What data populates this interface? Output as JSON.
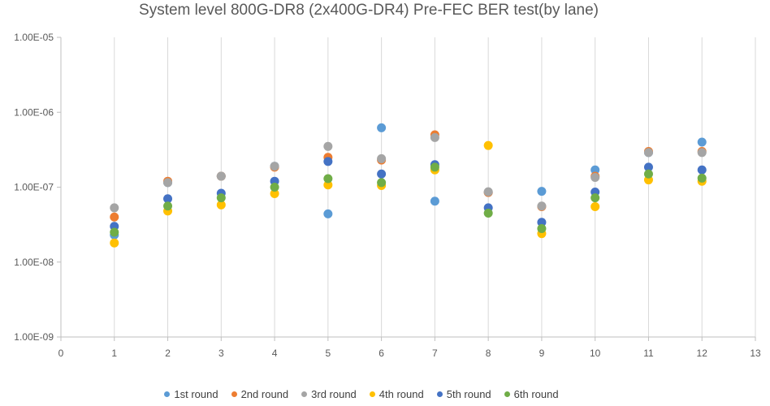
{
  "chart_data": {
    "type": "scatter",
    "title": "System level 800G-DR8 (2x400G-DR4) Pre-FEC BER test(by lane)",
    "xlabel": "",
    "ylabel": "",
    "xlim": [
      0,
      13
    ],
    "ylim": [
      1e-09,
      1e-05
    ],
    "y_scale": "log",
    "x_ticks": [
      "0",
      "1",
      "2",
      "3",
      "4",
      "5",
      "6",
      "7",
      "8",
      "9",
      "10",
      "11",
      "12",
      "13"
    ],
    "y_ticks": [
      "1.00E-09",
      "1.00E-08",
      "1.00E-07",
      "1.00E-06",
      "1.00E-05"
    ],
    "grid": "vertical",
    "legend_position": "bottom",
    "x": [
      1,
      2,
      3,
      4,
      5,
      6,
      7,
      8,
      9,
      10,
      11,
      12
    ],
    "series": [
      {
        "name": "1st round",
        "color": "#5B9BD5",
        "values": [
          2.3e-08,
          1.15e-07,
          1.4e-07,
          1.9e-07,
          4.4e-08,
          6.2e-07,
          6.5e-08,
          8.5e-08,
          8.8e-08,
          1.7e-07,
          2.9e-07,
          4e-07
        ]
      },
      {
        "name": "2nd round",
        "color": "#ED7D31",
        "values": [
          4e-08,
          1.2e-07,
          1.4e-07,
          1.85e-07,
          2.5e-07,
          2.3e-07,
          5e-07,
          8.5e-08,
          5.5e-08,
          1.4e-07,
          3e-07,
          3e-07
        ]
      },
      {
        "name": "3rd round",
        "color": "#A5A5A5",
        "values": [
          5.3e-08,
          1.15e-07,
          1.4e-07,
          1.9e-07,
          3.5e-07,
          2.4e-07,
          4.6e-07,
          8.7e-08,
          5.6e-08,
          1.35e-07,
          2.9e-07,
          2.9e-07
        ]
      },
      {
        "name": "4th round",
        "color": "#FFC000",
        "values": [
          1.8e-08,
          4.8e-08,
          5.8e-08,
          8.2e-08,
          1.07e-07,
          1.05e-07,
          1.7e-07,
          3.6e-07,
          2.4e-08,
          5.5e-08,
          1.25e-07,
          1.2e-07
        ]
      },
      {
        "name": "5th round",
        "color": "#4472C4",
        "values": [
          3e-08,
          7e-08,
          8.3e-08,
          1.2e-07,
          2.2e-07,
          1.5e-07,
          2e-07,
          5.3e-08,
          3.4e-08,
          8.6e-08,
          1.85e-07,
          1.7e-07
        ]
      },
      {
        "name": "6th round",
        "color": "#70AD47",
        "values": [
          2.5e-08,
          5.6e-08,
          7.2e-08,
          1e-07,
          1.3e-07,
          1.15e-07,
          1.85e-07,
          4.5e-08,
          2.8e-08,
          7.2e-08,
          1.5e-07,
          1.32e-07
        ]
      }
    ]
  }
}
